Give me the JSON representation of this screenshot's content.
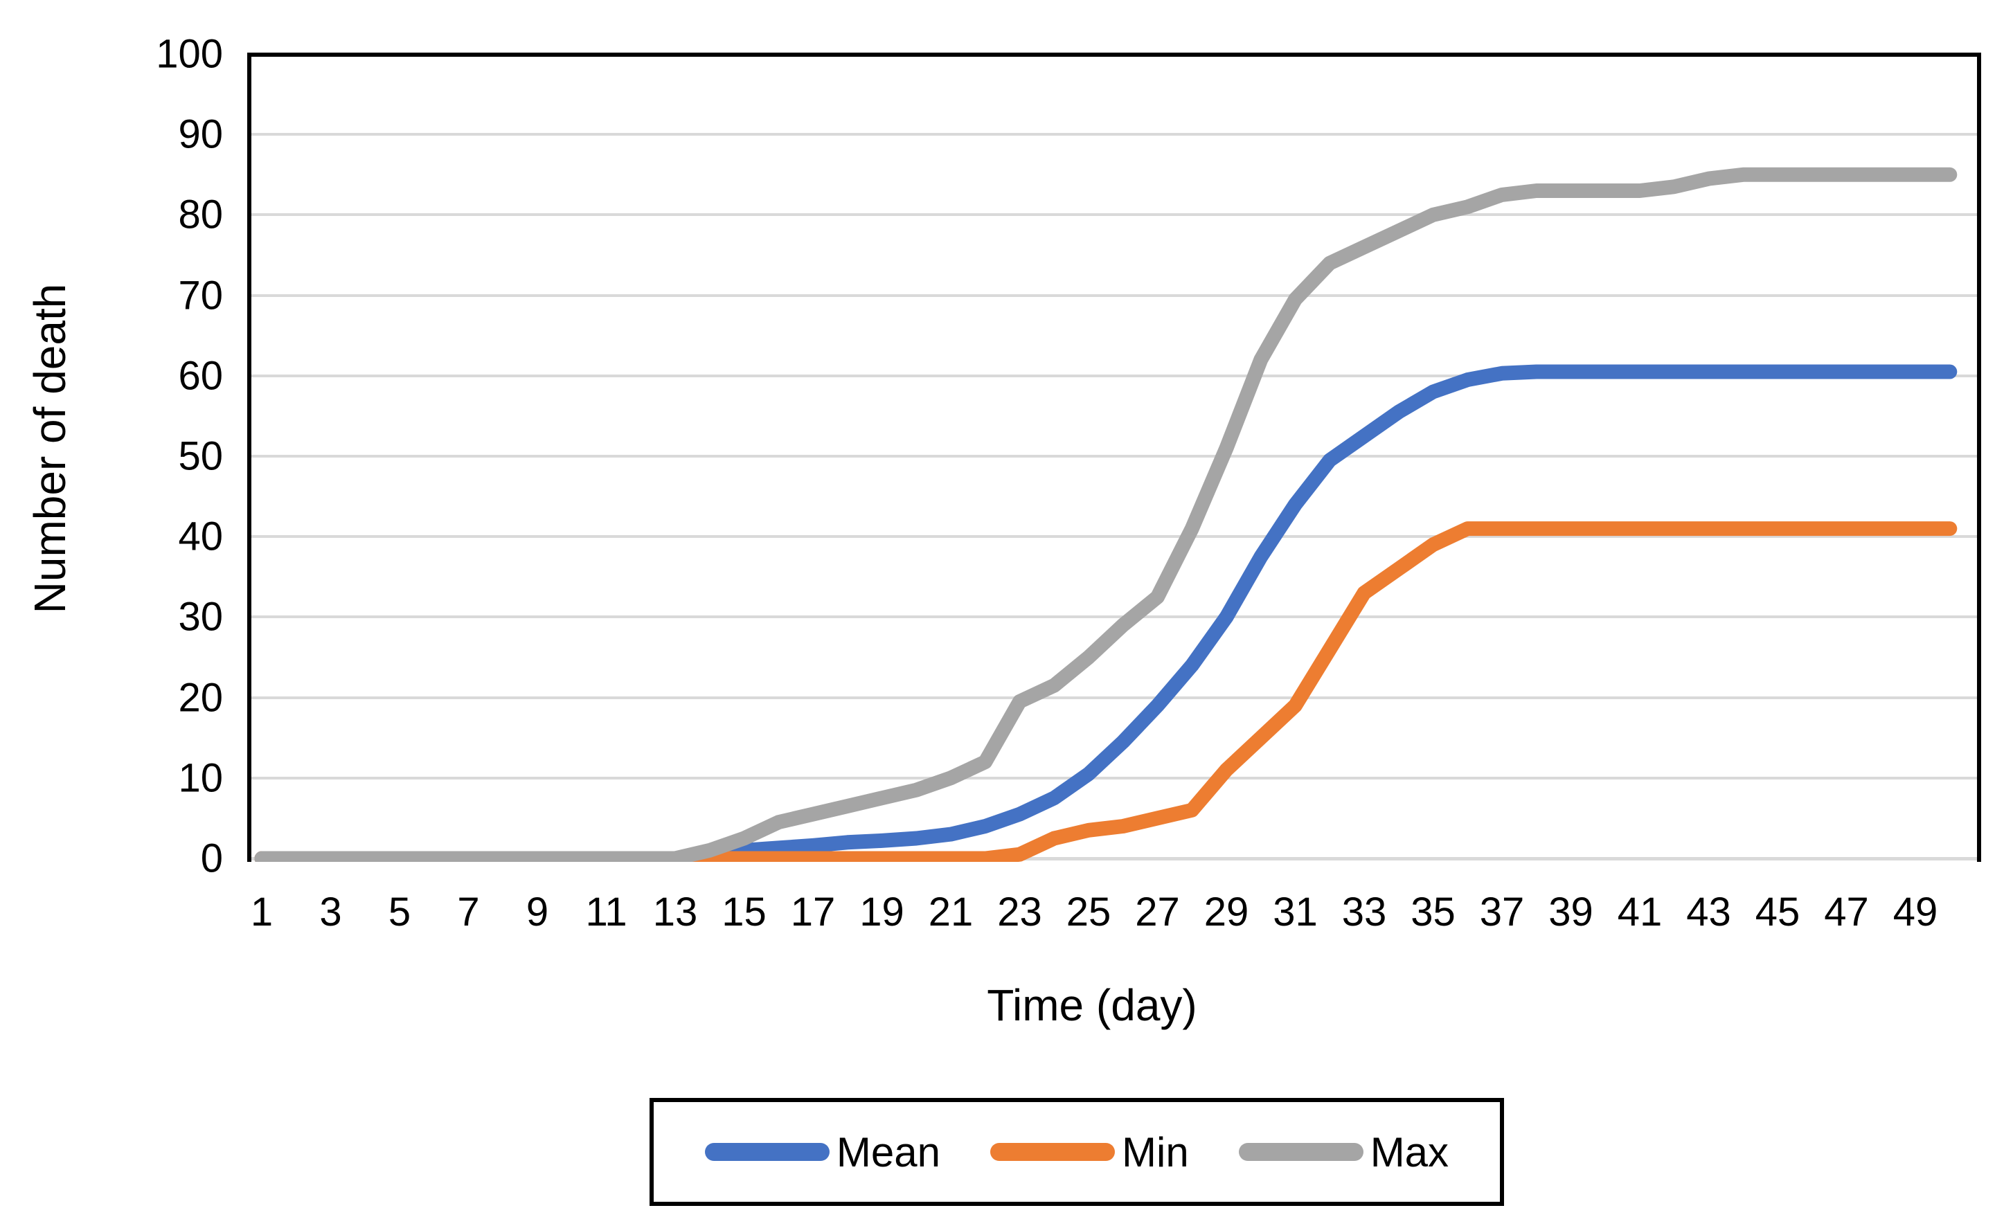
{
  "chart_data": {
    "type": "line",
    "x": [
      1,
      2,
      3,
      4,
      5,
      6,
      7,
      8,
      9,
      10,
      11,
      12,
      13,
      14,
      15,
      16,
      17,
      18,
      19,
      20,
      21,
      22,
      23,
      24,
      25,
      26,
      27,
      28,
      29,
      30,
      31,
      32,
      33,
      34,
      35,
      36,
      37,
      38,
      39,
      40,
      41,
      42,
      43,
      44,
      45,
      46,
      47,
      48,
      49,
      50
    ],
    "series": [
      {
        "name": "Mean",
        "color": "#4472C4",
        "values": [
          0,
          0,
          0,
          0,
          0,
          0,
          0,
          0,
          0,
          0,
          0,
          0,
          0,
          0.5,
          1,
          1.3,
          1.6,
          2,
          2.2,
          2.5,
          3,
          4,
          5.5,
          7.5,
          10.5,
          14.5,
          19,
          24,
          30,
          37.5,
          44,
          49.5,
          52.5,
          55.5,
          58,
          59.5,
          60.3,
          60.5,
          60.5,
          60.5,
          60.5,
          60.5,
          60.5,
          60.5,
          60.5,
          60.5,
          60.5,
          60.5,
          60.5,
          60.5
        ]
      },
      {
        "name": "Min",
        "color": "#ED7D31",
        "values": [
          0,
          0,
          0,
          0,
          0,
          0,
          0,
          0,
          0,
          0,
          0,
          0,
          0,
          0,
          0,
          0,
          0,
          0,
          0,
          0,
          0,
          0,
          0.5,
          2.5,
          3.5,
          4,
          5,
          6,
          11,
          15,
          19,
          26,
          33,
          36,
          39,
          41,
          41,
          41,
          41,
          41,
          41,
          41,
          41,
          41,
          41,
          41,
          41,
          41,
          41,
          41
        ]
      },
      {
        "name": "Max",
        "color": "#A5A5A5",
        "values": [
          0,
          0,
          0,
          0,
          0,
          0,
          0,
          0,
          0,
          0,
          0,
          0,
          0,
          1,
          2.5,
          4.5,
          5.5,
          6.5,
          7.5,
          8.5,
          10,
          12,
          19.5,
          21.5,
          25,
          29,
          32.5,
          41,
          51,
          62,
          69.5,
          74,
          76,
          78,
          80,
          81,
          82.5,
          83,
          83,
          83,
          83,
          83.5,
          84.5,
          85,
          85,
          85,
          85,
          85,
          85,
          85
        ]
      }
    ],
    "title": "",
    "xlabel": "Time (day)",
    "ylabel": "Number of death",
    "ylim": [
      0,
      100
    ],
    "y_ticks": [
      100,
      90,
      80,
      70,
      60,
      50,
      40,
      30,
      20,
      10,
      0
    ],
    "x_ticks": [
      1,
      3,
      5,
      7,
      9,
      11,
      13,
      15,
      17,
      19,
      21,
      23,
      25,
      27,
      29,
      31,
      33,
      35,
      37,
      39,
      41,
      43,
      45,
      47,
      49
    ],
    "grid": "horizontal",
    "grid_color": "#D9D9D9",
    "axis_border_color": "#000000",
    "legend_position": "bottom"
  },
  "axes": {
    "x_title": "Time (day)",
    "y_title": "Number of death"
  },
  "legend": {
    "items": [
      {
        "label": "Mean",
        "color": "#4472C4"
      },
      {
        "label": "Min",
        "color": "#ED7D31"
      },
      {
        "label": "Max",
        "color": "#A5A5A5"
      }
    ]
  }
}
